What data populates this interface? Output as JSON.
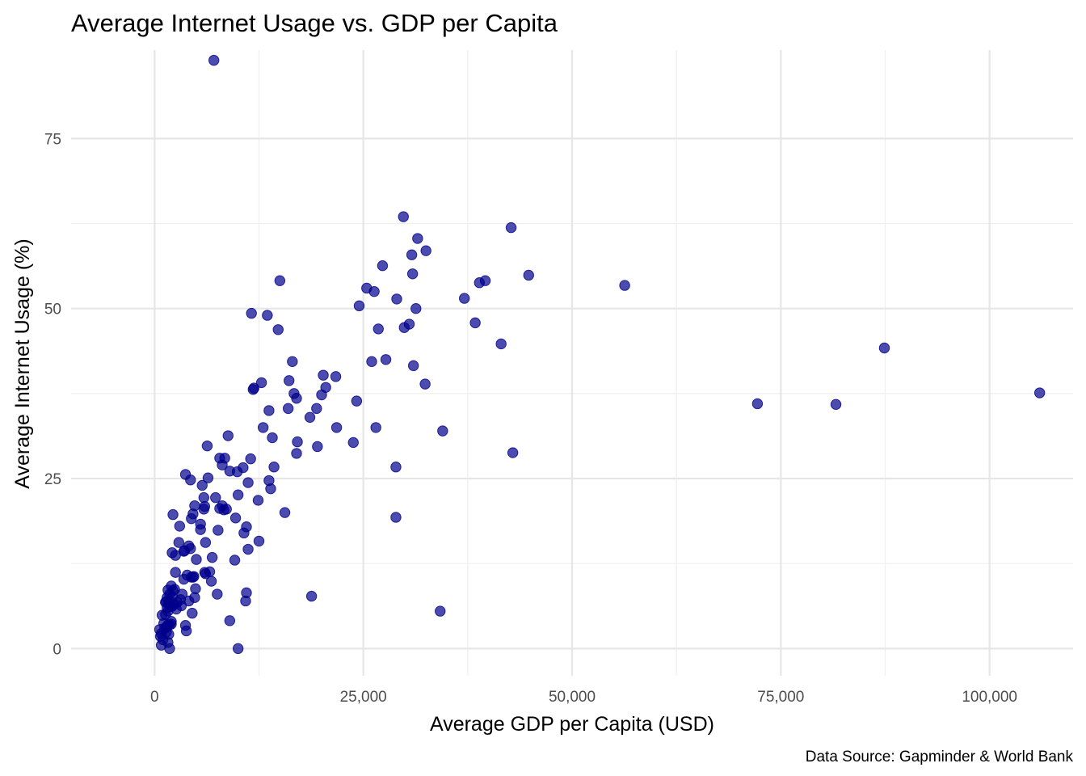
{
  "chart_data": {
    "type": "scatter",
    "title": "Average Internet Usage vs. GDP per Capita",
    "xlabel": "Average GDP per Capita (USD)",
    "ylabel": "Average Internet Usage (%)",
    "caption": "Data Source: Gapminder & World Bank",
    "xlim": [
      -10000,
      110000
    ],
    "ylim": [
      -4,
      88
    ],
    "x_major_ticks": [
      0,
      25000,
      50000,
      75000,
      100000
    ],
    "x_tick_labels": [
      "0",
      "25,000",
      "50,000",
      "75,000",
      "100,000"
    ],
    "x_minor_ticks": [
      12500,
      37500,
      62500,
      87500
    ],
    "y_major_ticks": [
      0,
      25,
      50,
      75
    ],
    "y_tick_labels": [
      "0",
      "25",
      "50",
      "75"
    ],
    "y_minor_ticks": [
      12.5,
      37.5,
      62.5
    ],
    "grid": true,
    "legend": "none",
    "point_color": "#00008b",
    "x": [
      7100,
      29800,
      42700,
      31500,
      32500,
      30800,
      27300,
      15000,
      30900,
      44800,
      39600,
      38900,
      56300,
      25400,
      26300,
      37100,
      29000,
      24500,
      11600,
      13500,
      31300,
      30500,
      38400,
      29900,
      14800,
      26800,
      41500,
      16500,
      27700,
      26000,
      31000,
      21700,
      20200,
      20500,
      32400,
      16100,
      12800,
      11900,
      20000,
      16700,
      17000,
      24200,
      16000,
      19400,
      13700,
      18600,
      11800,
      21800,
      26500,
      34500,
      13000,
      14100,
      23800,
      17100,
      8800,
      6300,
      17000,
      19500,
      42900,
      14300,
      3700,
      11500,
      7800,
      8100,
      8400,
      10600,
      9000,
      9900,
      4300,
      6400,
      5700,
      11200,
      13700,
      13900,
      28900,
      10000,
      4800,
      12400,
      5900,
      7300,
      2200,
      5900,
      4600,
      6000,
      8300,
      7800,
      8100,
      15600,
      28900,
      8600,
      4400,
      9700,
      5500,
      3000,
      10700,
      5500,
      11000,
      7600,
      6100,
      12500,
      2900,
      4100,
      3600,
      4300,
      6900,
      11200,
      2100,
      2500,
      3500,
      5000,
      9600,
      6000,
      6100,
      2500,
      6600,
      3900,
      4400,
      4700,
      3500,
      6800,
      4600,
      2000,
      1600,
      2400,
      4900,
      7500,
      3300,
      4800,
      1800,
      2200,
      1500,
      11000,
      10900,
      2100,
      1400,
      4100,
      18800,
      2700,
      1800,
      3100,
      1300,
      2300,
      3200,
      1700,
      2100,
      2600,
      1500,
      1900,
      9000,
      3700,
      2000,
      1600,
      3800,
      900,
      4500,
      1300,
      2000,
      1800,
      1100,
      1600,
      600,
      1500,
      1700,
      1200,
      800,
      1400,
      1000,
      700,
      1600,
      800,
      10000,
      1800,
      34200,
      72200,
      81600,
      87400,
      106000
    ],
    "y": [
      86.5,
      63.5,
      61.9,
      60.3,
      58.5,
      57.9,
      56.3,
      54.1,
      55.1,
      54.9,
      54.1,
      53.8,
      53.4,
      53.0,
      52.5,
      51.5,
      51.4,
      50.4,
      49.3,
      49.0,
      50.0,
      47.7,
      47.9,
      47.2,
      46.9,
      47.0,
      44.8,
      42.2,
      42.5,
      42.2,
      41.6,
      40.0,
      40.2,
      38.4,
      38.9,
      39.4,
      39.1,
      38.3,
      37.3,
      37.5,
      36.8,
      36.4,
      35.3,
      35.3,
      35.0,
      34.0,
      38.1,
      32.5,
      32.5,
      32.0,
      32.5,
      31.0,
      30.3,
      30.4,
      31.3,
      29.8,
      28.7,
      29.7,
      28.8,
      26.7,
      25.6,
      27.9,
      28.0,
      27.0,
      28.0,
      26.6,
      26.1,
      26.0,
      24.8,
      25.1,
      24.0,
      24.4,
      24.7,
      23.5,
      26.7,
      22.6,
      21.0,
      21.8,
      22.2,
      22.2,
      19.7,
      20.5,
      19.8,
      20.9,
      20.4,
      20.6,
      21.0,
      20.0,
      19.3,
      20.5,
      19.1,
      19.2,
      18.3,
      18.0,
      17.0,
      17.5,
      17.9,
      17.4,
      15.6,
      15.8,
      15.6,
      15.1,
      14.4,
      14.7,
      13.4,
      14.6,
      14.1,
      13.7,
      14.3,
      13.1,
      13.0,
      11.2,
      11.0,
      11.2,
      11.3,
      10.8,
      10.5,
      10.6,
      10.2,
      9.9,
      10.5,
      9.2,
      8.6,
      8.7,
      8.8,
      8.0,
      8.0,
      7.5,
      8.0,
      8.5,
      7.5,
      8.2,
      7.0,
      7.6,
      6.9,
      7.0,
      7.7,
      6.8,
      7.0,
      7.2,
      6.8,
      6.5,
      6.3,
      6.5,
      6.2,
      5.8,
      6.0,
      6.2,
      4.1,
      3.4,
      3.6,
      5.5,
      2.6,
      4.9,
      5.2,
      5.0,
      4.0,
      3.5,
      3.7,
      3.5,
      2.8,
      3.2,
      2.1,
      3.0,
      2.2,
      2.4,
      1.3,
      1.8,
      0.9,
      0.5,
      0.0,
      0.0,
      5.5,
      36.0,
      35.9,
      44.2,
      37.6
    ]
  }
}
